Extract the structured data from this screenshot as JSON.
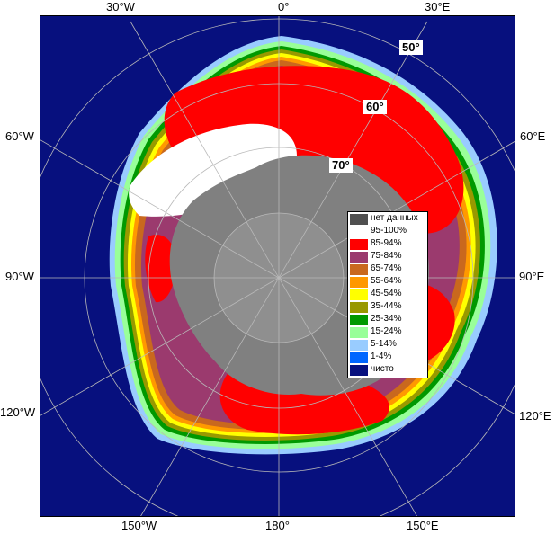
{
  "map": {
    "lon_labels": {
      "w30": "30°W",
      "zero": "0°",
      "e30": "30°E",
      "w60": "60°W",
      "e60": "60°E",
      "w90": "90°W",
      "e90": "90°E",
      "w120": "120°W",
      "e120": "120°E",
      "w150": "150°W",
      "e180": "180°",
      "e150": "150°E"
    },
    "lat_labels": {
      "lat50": "50°",
      "lat60": "60°",
      "lat70": "70°"
    },
    "colors": {
      "open_water": "#07107e",
      "no_data": "#808080",
      "land_overlay": "#8f8f8f",
      "grid": "#b8b8b8"
    }
  },
  "legend": {
    "items": [
      {
        "label": "нет данных",
        "color": "#505050"
      },
      {
        "label": "95-100%",
        "color": "#ffffff"
      },
      {
        "label": "85-94%",
        "color": "#ff0000"
      },
      {
        "label": "75-84%",
        "color": "#9b3a6e"
      },
      {
        "label": "65-74%",
        "color": "#c9681e"
      },
      {
        "label": "55-64%",
        "color": "#ff9900"
      },
      {
        "label": "45-54%",
        "color": "#ffff00"
      },
      {
        "label": "35-44%",
        "color": "#999900"
      },
      {
        "label": "25-34%",
        "color": "#009900"
      },
      {
        "label": "15-24%",
        "color": "#99ff99"
      },
      {
        "label": "5-14%",
        "color": "#99ccff"
      },
      {
        "label": "1-4%",
        "color": "#0066ff"
      },
      {
        "label": "чисто",
        "color": "#07107e"
      }
    ]
  }
}
